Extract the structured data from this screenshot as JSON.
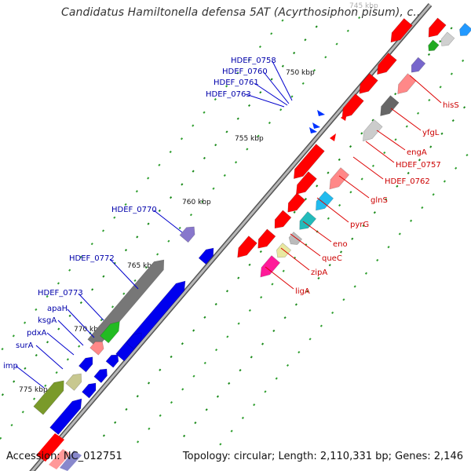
{
  "title": "Candidatus Hamiltonella defensa 5AT (Acyrthosiphon pisum), c...",
  "accession": "Accession: NC_012751",
  "summary": "Topology: circular; Length: 2,110,331 bp; Genes: 2,146",
  "colors": {
    "backbone": "#888888",
    "forward_label": "#cc0000",
    "reverse_label": "#0000aa",
    "tick": "#008000"
  },
  "kbp_ticks": [
    {
      "label": "745 kbp",
      "pos": 745
    },
    {
      "label": "750 kbp",
      "pos": 750
    },
    {
      "label": "755 kbp",
      "pos": 755
    },
    {
      "label": "760 kbp",
      "pos": 760
    },
    {
      "label": "765 kbp",
      "pos": 765
    },
    {
      "label": "770 kbp",
      "pos": 770
    },
    {
      "label": "775 kbp",
      "pos": 775
    }
  ],
  "reverse_genes": [
    {
      "name": "HDEF_0758"
    },
    {
      "name": "HDEF_0760"
    },
    {
      "name": "HDEF_0761"
    },
    {
      "name": "HDEF_0763"
    },
    {
      "name": "HDEF_0770"
    },
    {
      "name": "HDEF_0772"
    },
    {
      "name": "HDEF_0773"
    },
    {
      "name": "apaH"
    },
    {
      "name": "ksgA"
    },
    {
      "name": "pdxA"
    },
    {
      "name": "surA"
    },
    {
      "name": "imp"
    }
  ],
  "forward_genes": [
    {
      "name": "hisS"
    },
    {
      "name": "yfgL"
    },
    {
      "name": "engA"
    },
    {
      "name": "HDEF_0757"
    },
    {
      "name": "HDEF_0762"
    },
    {
      "name": "glnS"
    },
    {
      "name": "pyrG"
    },
    {
      "name": "eno"
    },
    {
      "name": "queC"
    },
    {
      "name": "zipA"
    },
    {
      "name": "ligA"
    }
  ]
}
